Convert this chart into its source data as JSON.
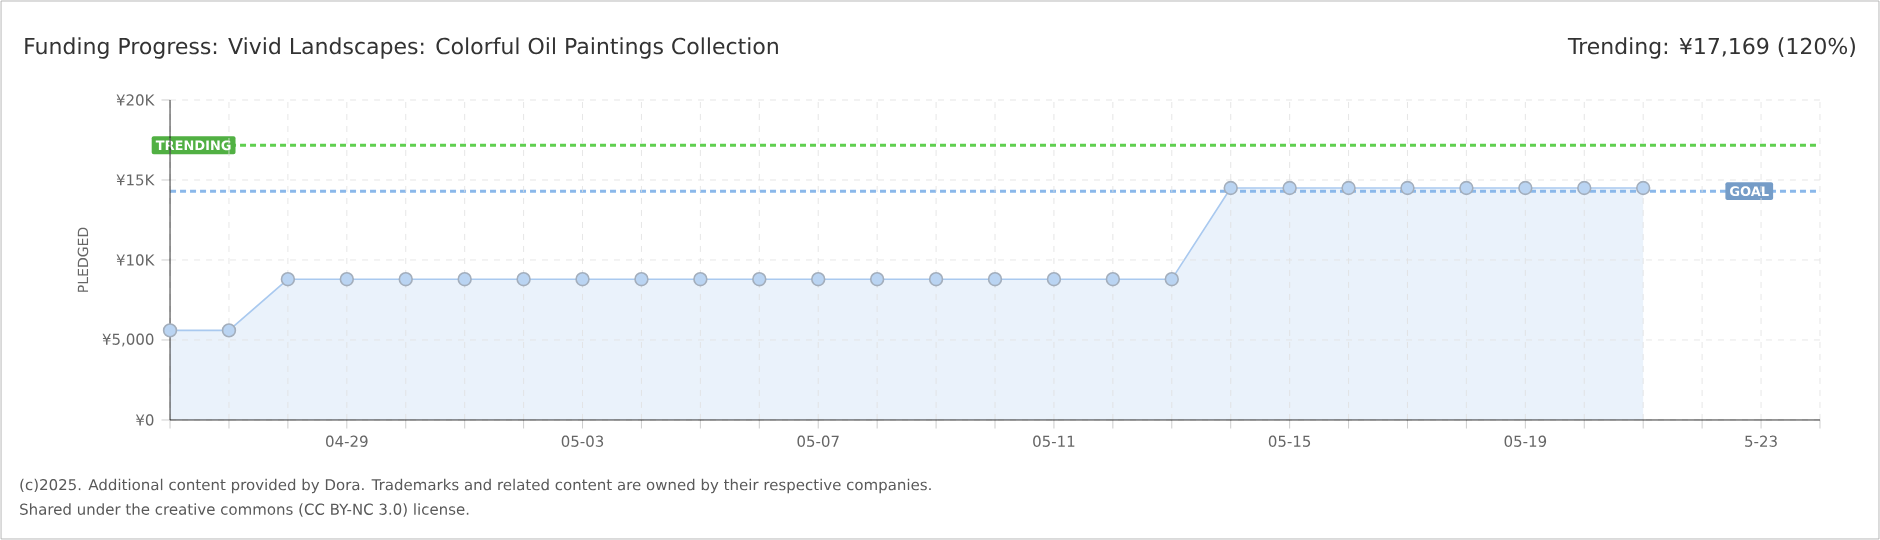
{
  "chart_data": {
    "type": "area",
    "title": "Funding Progress: Vivid Landscapes: Colorful Oil Paintings Collection",
    "subtitle": "Trending:  ¥17,169 (120%)",
    "ylabel": "PLEDGED",
    "annotations": [
      "(c)2025. Additional content provided by Dora. Trademarks and related content are owned by their respective companies.",
      "Shared under the creative commons (CC BY-NC 3.0) license."
    ],
    "x": [
      "2025-04-26",
      "2025-04-27",
      "2025-04-28",
      "2025-04-29",
      "2025-04-30",
      "2025-05-01",
      "2025-05-02",
      "2025-05-03",
      "2025-05-04",
      "2025-05-05",
      "2025-05-06",
      "2025-05-07",
      "2025-05-08",
      "2025-05-09",
      "2025-05-10",
      "2025-05-11",
      "2025-05-12",
      "2025-05-13",
      "2025-05-14",
      "2025-05-15",
      "2025-05-16",
      "2025-05-17",
      "2025-05-18",
      "2025-05-19",
      "2025-05-20",
      "2025-05-21"
    ],
    "series": [
      {
        "color": "#a9c9ef",
        "values": [
          5600,
          5600,
          8800,
          8800,
          8800,
          8800,
          8800,
          8800,
          8800,
          8800,
          8800,
          8800,
          8800,
          8800,
          8800,
          8800,
          8800,
          8800,
          14500,
          14500,
          14500,
          14500,
          14500,
          14500,
          14500,
          14500
        ]
      }
    ],
    "xlim": [
      "2025-04-26",
      "2025-05-24"
    ],
    "xticks": [
      {
        "value": "2025-04-26",
        "label": null
      },
      {
        "value": "2025-04-27",
        "label": null
      },
      {
        "value": "2025-04-28",
        "label": null
      },
      {
        "value": "2025-04-29",
        "label": "04-29"
      },
      {
        "value": "2025-04-30",
        "label": null
      },
      {
        "value": "2025-05-01",
        "label": null
      },
      {
        "value": "2025-05-02",
        "label": null
      },
      {
        "value": "2025-05-03",
        "label": "05-03"
      },
      {
        "value": "2025-05-04",
        "label": null
      },
      {
        "value": "2025-05-05",
        "label": null
      },
      {
        "value": "2025-05-06",
        "label": null
      },
      {
        "value": "2025-05-07",
        "label": "05-07"
      },
      {
        "value": "2025-05-08",
        "label": null
      },
      {
        "value": "2025-05-09",
        "label": null
      },
      {
        "value": "2025-05-10",
        "label": null
      },
      {
        "value": "2025-05-11",
        "label": "05-11"
      },
      {
        "value": "2025-05-12",
        "label": null
      },
      {
        "value": "2025-05-13",
        "label": null
      },
      {
        "value": "2025-05-14",
        "label": null
      },
      {
        "value": "2025-05-15",
        "label": "05-15"
      },
      {
        "value": "2025-05-16",
        "label": null
      },
      {
        "value": "2025-05-17",
        "label": null
      },
      {
        "value": "2025-05-18",
        "label": null
      },
      {
        "value": "2025-05-19",
        "label": "05-19"
      },
      {
        "value": "2025-05-20",
        "label": null
      },
      {
        "value": "2025-05-21",
        "label": null
      },
      {
        "value": "2025-05-22",
        "label": null
      },
      {
        "value": "2025-05-23",
        "label": "5-23"
      },
      {
        "value": "2025-05-24",
        "label": null
      }
    ],
    "ylim": [
      0,
      20000
    ],
    "yticks": [
      {
        "value": 0,
        "label": "¥0"
      },
      {
        "value": 5000,
        "label": "¥5,000"
      },
      {
        "value": 10000,
        "label": "¥10K"
      },
      {
        "value": 15000,
        "label": "¥15K"
      },
      {
        "value": 20000,
        "label": "¥20K"
      }
    ],
    "ref_lines": [
      {
        "axis": "y",
        "value": 17169,
        "label": "TRENDING",
        "color": "#5fcf4f",
        "line_style": "dashed"
      },
      {
        "axis": "y",
        "value": 14300,
        "label": "GOAL",
        "color": "#8ab8ea",
        "line_style": "dashed"
      }
    ],
    "grid": true,
    "marker": "circle"
  }
}
